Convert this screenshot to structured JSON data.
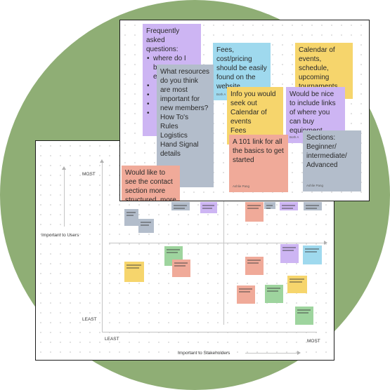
{
  "matrix": {
    "y_axis_title": "Important to Users",
    "x_axis_title": "Important to Stakeholders",
    "y_most": "MOST",
    "y_least": "LEAST",
    "x_least": "LEAST",
    "x_most": "MOST"
  },
  "board": {
    "faq": {
      "title": "Frequently asked questions:",
      "items": [
        "where do I buy equipment",
        "",
        "",
        "",
        ""
      ]
    },
    "fees": {
      "text": "Fees, cost/pricing should be easily found on the website",
      "author": "Both A"
    },
    "calendar": {
      "text": "Calendar of events, schedule, upcoming tournaments"
    },
    "resources": {
      "text": "What resources do you think are most important for new members?",
      "lines": [
        "How To's",
        "Rules",
        "Logistics",
        "Hand Signal details"
      ]
    },
    "info_seek": {
      "lines": [
        "Info you would seek out",
        "Calendar of events",
        "Fees"
      ]
    },
    "equip_links": {
      "text": "Would be nice to include links of where you can buy equipment",
      "author": "Both A"
    },
    "link101": {
      "text": "A 101 link for all the basics to get started",
      "author": "Ashlie Pang"
    },
    "sections": {
      "lines": [
        "Sections:",
        "Beginner/",
        "intermediate/",
        "Advanced"
      ],
      "author": "Ashlie Pang"
    },
    "contact": {
      "text": "Would like to see the contact section more structured, more"
    }
  },
  "colors": {
    "background_circle": "#8fae75",
    "purple": "#cdb5f3",
    "blue": "#9fd9ee",
    "yellow": "#f6d56c",
    "salmon": "#f0aa99",
    "gray": "#b3bdcb",
    "green": "#9ed49e"
  }
}
